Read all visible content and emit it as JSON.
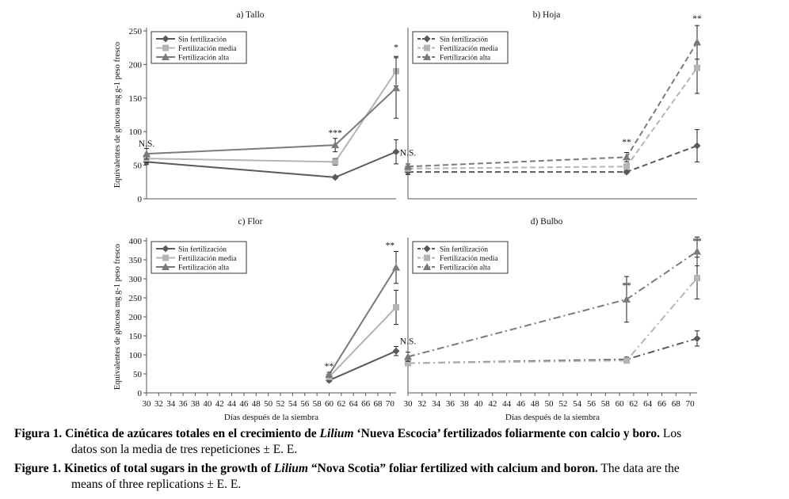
{
  "colors": {
    "sin": "#5a5a5a",
    "media": "#b4b4b4",
    "alta": "#7a7a7a",
    "axis": "#555555"
  },
  "legend_labels": [
    "Sin fertilización",
    "Fertilización media",
    "Fertilización alta"
  ],
  "legend_labels_bulbo": [
    "Sin fertilización",
    "Fertilización media",
    "Fertilización alta"
  ],
  "chart_data": [
    {
      "id": "tallo",
      "type": "line",
      "title": "a) Tallo",
      "xlabel": "",
      "ylabel": "Equivalentes de glucosa mg g-1 peso fresco",
      "ylim": [
        0,
        250
      ],
      "yticks": [
        0,
        50,
        100,
        150,
        200,
        250
      ],
      "xlim": [
        30,
        71
      ],
      "x": [
        30,
        61,
        71
      ],
      "line_style": "solid",
      "legend_position": "top-left",
      "series": [
        {
          "name": "Sin fertilización",
          "values": [
            55,
            32,
            70
          ],
          "errors": [
            4,
            2,
            18
          ],
          "marker": "diamond"
        },
        {
          "name": "Fertilización media",
          "values": [
            60,
            55,
            190
          ],
          "errors": [
            6,
            5,
            22
          ],
          "marker": "square"
        },
        {
          "name": "Fertilización alta",
          "values": [
            67,
            80,
            165
          ],
          "errors": [
            8,
            10,
            45
          ],
          "marker": "triangle"
        }
      ],
      "annotations": [
        {
          "text": "N.S.",
          "x": 30,
          "y": 78
        },
        {
          "text": "***",
          "x": 61,
          "y": 94
        },
        {
          "text": "*",
          "x": 71,
          "y": 221
        }
      ]
    },
    {
      "id": "hoja",
      "type": "line",
      "title": "b) Hoja",
      "xlabel": "",
      "ylabel": "",
      "ylim": [
        0,
        250
      ],
      "yticks": [],
      "xlim": [
        30,
        71
      ],
      "x": [
        30,
        61,
        71
      ],
      "line_style": "dashed",
      "legend_position": "top-left",
      "series": [
        {
          "name": "Sin fertilización",
          "values": [
            40,
            40,
            79
          ],
          "errors": [
            4,
            2,
            24
          ],
          "marker": "diamond"
        },
        {
          "name": "Fertilización media",
          "values": [
            45,
            48,
            195
          ],
          "errors": [
            4,
            4,
            38
          ],
          "marker": "square"
        },
        {
          "name": "Fertilización alta",
          "values": [
            48,
            62,
            233
          ],
          "errors": [
            4,
            7,
            25
          ],
          "marker": "triangle"
        }
      ],
      "annotations": [
        {
          "text": "N.S.",
          "x": 30,
          "y": 64
        },
        {
          "text": "**",
          "x": 61,
          "y": 80
        },
        {
          "text": "**",
          "x": 71,
          "y": 264
        }
      ]
    },
    {
      "id": "flor",
      "type": "line",
      "title": "c) Flor",
      "xlabel": "Días después de la siembra",
      "ylabel": "Equivalentes de glucosa mg g-1 peso fresco",
      "ylim": [
        0,
        400
      ],
      "yticks": [
        0,
        50,
        100,
        150,
        200,
        250,
        300,
        350,
        400
      ],
      "xlim": [
        30,
        71
      ],
      "xticks": [
        30,
        32,
        34,
        36,
        38,
        40,
        42,
        44,
        46,
        48,
        50,
        52,
        54,
        56,
        58,
        60,
        62,
        64,
        66,
        68,
        70
      ],
      "x": [
        60,
        71
      ],
      "line_style": "solid",
      "legend_position": "top-left",
      "series": [
        {
          "name": "Sin fertilización",
          "values": [
            33,
            110
          ],
          "errors": [
            4,
            12
          ],
          "marker": "diamond"
        },
        {
          "name": "Fertilización media",
          "values": [
            42,
            225
          ],
          "errors": [
            5,
            45
          ],
          "marker": "square"
        },
        {
          "name": "Fertilización alta",
          "values": [
            48,
            330
          ],
          "errors": [
            6,
            42
          ],
          "marker": "triangle"
        }
      ],
      "annotations": [
        {
          "text": "**",
          "x": 60,
          "y": 63
        },
        {
          "text": "**",
          "x": 70,
          "y": 380
        }
      ]
    },
    {
      "id": "bulbo",
      "type": "line",
      "title": "d) Bulbo",
      "xlabel": "Días después de la siembra",
      "ylabel": "",
      "ylim": [
        0,
        400
      ],
      "yticks": [],
      "xlim": [
        30,
        71
      ],
      "xticks": [
        30,
        32,
        34,
        36,
        38,
        40,
        42,
        44,
        46,
        48,
        50,
        52,
        54,
        56,
        58,
        60,
        62,
        64,
        66,
        68,
        70
      ],
      "x": [
        30,
        61,
        71
      ],
      "line_style": "dashdot",
      "legend_position": "top-left",
      "series": [
        {
          "name": "Sin fertilización",
          "values": [
            78,
            88,
            143
          ],
          "errors": [
            5,
            6,
            20
          ],
          "marker": "diamond"
        },
        {
          "name": "Fertilización media",
          "values": [
            78,
            85,
            302
          ],
          "errors": [
            5,
            6,
            55
          ],
          "marker": "square"
        },
        {
          "name": "Fertilización alta",
          "values": [
            95,
            246,
            372
          ],
          "errors": [
            12,
            60,
            38
          ],
          "marker": "triangle"
        }
      ],
      "annotations": [
        {
          "text": "N.S.",
          "x": 30,
          "y": 128
        },
        {
          "text": "**",
          "x": 61,
          "y": 275
        },
        {
          "text": "**",
          "x": 71,
          "y": 392
        }
      ]
    }
  ],
  "caption": {
    "es_lead": "Figura 1. Cinética de azúcares totales en el crecimiento de ",
    "es_italic": "Lilium",
    "es_lead2": " ‘Nueva Escocia’ fertilizados foliarmente con calcio y boro.",
    "es_rest": " Los",
    "es_cont": "datos son la media de tres repeticiones ± E. E.",
    "en_lead": "Figure 1. Kinetics of total sugars in the growth of ",
    "en_italic": "Lilium",
    "en_lead2": " “Nova Scotia” foliar fertilized with calcium and boron.",
    "en_rest": " The data are the",
    "en_cont": "means of three replications ± E. E."
  }
}
